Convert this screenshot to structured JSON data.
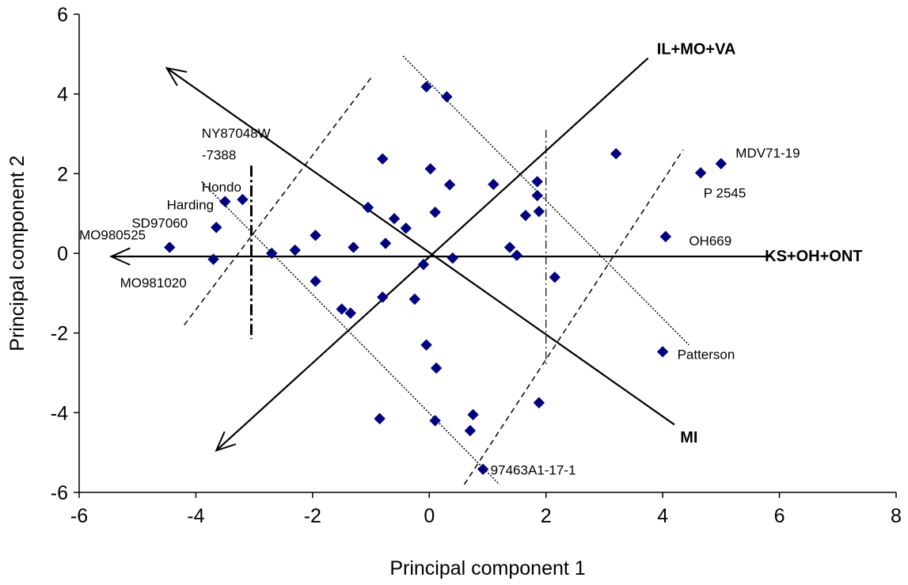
{
  "chart_data": {
    "type": "scatter",
    "title": "",
    "xlabel": "Principal component 1",
    "ylabel": "Principal component 2",
    "xlim": [
      -6,
      8
    ],
    "ylim": [
      -6,
      6
    ],
    "xticks": [
      -6,
      -4,
      -2,
      0,
      2,
      4,
      6,
      8
    ],
    "yticks": [
      -6,
      -4,
      -2,
      0,
      2,
      4,
      6
    ],
    "xtick_labels": [
      "-6",
      "-4",
      "-2",
      "0",
      "2",
      "4",
      "6",
      "8"
    ],
    "ytick_labels": [
      "-6",
      "-4",
      "-2",
      "0",
      "2",
      "4",
      "6"
    ],
    "grid": false,
    "marker_color": "#000080",
    "points": [
      {
        "x": -4.45,
        "y": 0.15
      },
      {
        "x": -3.65,
        "y": 0.65
      },
      {
        "x": -3.7,
        "y": -0.15
      },
      {
        "x": -3.5,
        "y": 1.3
      },
      {
        "x": -3.2,
        "y": 1.35
      },
      {
        "x": -2.7,
        "y": 0.0
      },
      {
        "x": -2.3,
        "y": 0.08
      },
      {
        "x": -1.95,
        "y": 0.45
      },
      {
        "x": -1.95,
        "y": -0.7
      },
      {
        "x": -1.3,
        "y": 0.15
      },
      {
        "x": -1.5,
        "y": -1.4
      },
      {
        "x": -1.35,
        "y": -1.5
      },
      {
        "x": -1.05,
        "y": 1.15
      },
      {
        "x": -0.8,
        "y": 2.37
      },
      {
        "x": -0.75,
        "y": 0.25
      },
      {
        "x": -0.8,
        "y": -1.1
      },
      {
        "x": -0.6,
        "y": 0.87
      },
      {
        "x": -0.4,
        "y": 0.63
      },
      {
        "x": -0.25,
        "y": -1.15
      },
      {
        "x": -0.1,
        "y": -0.28
      },
      {
        "x": -0.05,
        "y": 4.18
      },
      {
        "x": 0.3,
        "y": 3.93
      },
      {
        "x": 0.02,
        "y": 2.12
      },
      {
        "x": 0.1,
        "y": 1.03
      },
      {
        "x": 0.35,
        "y": 1.72
      },
      {
        "x": 0.4,
        "y": -0.12
      },
      {
        "x": -0.05,
        "y": -2.3
      },
      {
        "x": 0.12,
        "y": -2.88
      },
      {
        "x": -0.85,
        "y": -4.15
      },
      {
        "x": 0.1,
        "y": -4.2
      },
      {
        "x": 0.75,
        "y": -4.05
      },
      {
        "x": 0.7,
        "y": -4.45
      },
      {
        "x": 0.92,
        "y": -5.42
      },
      {
        "x": 1.1,
        "y": 1.73
      },
      {
        "x": 1.65,
        "y": 0.95
      },
      {
        "x": 1.38,
        "y": 0.15
      },
      {
        "x": 1.5,
        "y": -0.05
      },
      {
        "x": 1.85,
        "y": 1.8
      },
      {
        "x": 1.85,
        "y": 1.45
      },
      {
        "x": 1.88,
        "y": 1.05
      },
      {
        "x": 1.88,
        "y": -3.75
      },
      {
        "x": 2.15,
        "y": -0.6
      },
      {
        "x": 3.2,
        "y": 2.5
      },
      {
        "x": 4.05,
        "y": 0.42
      },
      {
        "x": 4.0,
        "y": -2.47
      },
      {
        "x": 4.65,
        "y": 2.02
      },
      {
        "x": 5.0,
        "y": 2.25
      }
    ],
    "annotations": [
      {
        "text": "NY87048W",
        "x": -3.9,
        "y": 2.9
      },
      {
        "text": "-7388",
        "x": -3.9,
        "y": 2.35
      },
      {
        "text": "Hondo",
        "x": -3.9,
        "y": 1.55
      },
      {
        "text": "Harding",
        "x": -4.5,
        "y": 1.1
      },
      {
        "text": "SD97060",
        "x": -5.1,
        "y": 0.65
      },
      {
        "text": "MO980525",
        "x": -6.0,
        "y": 0.35
      },
      {
        "text": "MO981020",
        "x": -5.3,
        "y": -0.85
      },
      {
        "text": "MDV71-19",
        "x": 5.25,
        "y": 2.4
      },
      {
        "text": "P 2545",
        "x": 4.7,
        "y": 1.4
      },
      {
        "text": "OH669",
        "x": 4.45,
        "y": 0.2
      },
      {
        "text": "Patterson",
        "x": 4.25,
        "y": -2.65
      },
      {
        "text": "97463A1-17-1",
        "x": 1.05,
        "y": -5.55
      }
    ],
    "vector_labels": [
      {
        "text": "IL+MO+VA",
        "x": 3.9,
        "y": 5.0
      },
      {
        "text": "KS+OH+ONT",
        "x": 5.75,
        "y": -0.2
      },
      {
        "text": "MI",
        "x": 4.3,
        "y": -4.75
      }
    ]
  }
}
